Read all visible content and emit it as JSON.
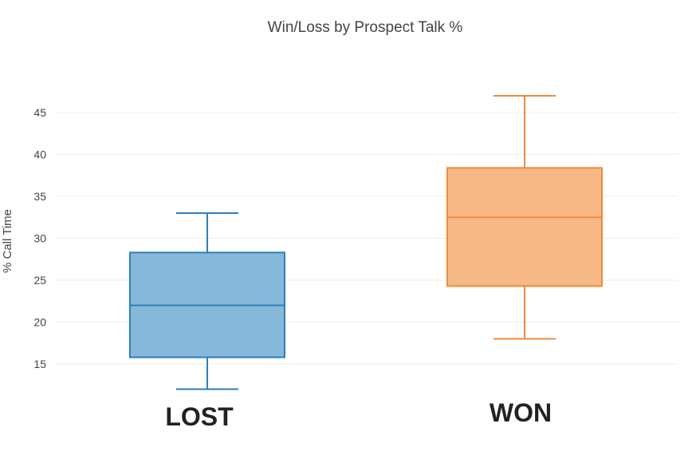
{
  "chart_data": {
    "type": "box",
    "title": "Win/Loss by Prospect Talk %",
    "xlabel": "",
    "ylabel": "% Call Time",
    "ylim": [
      10,
      50
    ],
    "y_ticks": [
      15,
      20,
      25,
      30,
      35,
      40,
      45
    ],
    "grid": true,
    "legend": "none",
    "categories": [
      "LOST",
      "WON"
    ],
    "series": [
      {
        "category": "LOST",
        "min": 12,
        "q1": 15.8,
        "median": 22,
        "q3": 28.3,
        "max": 33,
        "line_color": "#2e7ebc",
        "fill_color": "#85b8d9"
      },
      {
        "category": "WON",
        "min": 18,
        "q1": 24.3,
        "median": 32.5,
        "q3": 38.4,
        "max": 47,
        "line_color": "#f08a3c",
        "fill_color": "#f6b884"
      }
    ]
  }
}
